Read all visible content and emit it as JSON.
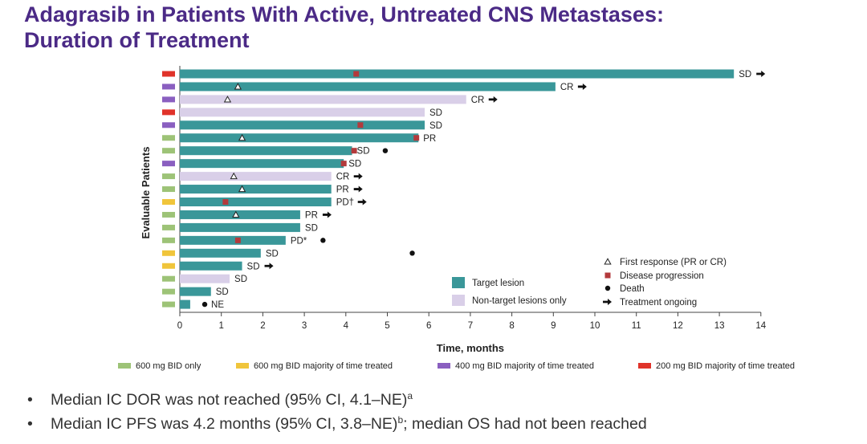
{
  "title_line1": "Adagrasib in Patients With Active, Untreated CNS Metastases:",
  "title_line2": "Duration of Treatment",
  "colors": {
    "title": "#4b2a86",
    "target_lesion": "#3a9799",
    "non_target": "#d9cfe8",
    "progression": "#b33a3c",
    "dose_600_only": "#9dc377",
    "dose_600_majority": "#f0c53b",
    "dose_400_majority": "#8a5fc0",
    "dose_200_majority": "#e0332a"
  },
  "chart_data": {
    "type": "bar",
    "orientation": "horizontal",
    "ylabel": "Evaluable Patients",
    "xlabel": "Time, months",
    "xlim": [
      0,
      14
    ],
    "xticks": [
      "0",
      "1",
      "2",
      "3",
      "4",
      "5",
      "6",
      "7",
      "8",
      "9",
      "10",
      "11",
      "12",
      "13",
      "14"
    ],
    "patients": [
      {
        "dose": "200",
        "duration": 13.35,
        "lesion": "target",
        "first_response": null,
        "progression": 4.25,
        "death": null,
        "label": "SD",
        "ongoing": true
      },
      {
        "dose": "400",
        "duration": 9.05,
        "lesion": "target",
        "first_response": 1.4,
        "progression": null,
        "death": null,
        "label": "CR",
        "ongoing": true
      },
      {
        "dose": "400",
        "duration": 6.9,
        "lesion": "non-target",
        "first_response": 1.15,
        "progression": null,
        "death": null,
        "label": "CR",
        "ongoing": true
      },
      {
        "dose": "200",
        "duration": 5.9,
        "lesion": "non-target",
        "first_response": null,
        "progression": null,
        "death": null,
        "label": "SD",
        "ongoing": false
      },
      {
        "dose": "400",
        "duration": 5.9,
        "lesion": "target",
        "first_response": null,
        "progression": 4.35,
        "death": null,
        "label": "SD",
        "ongoing": false
      },
      {
        "dose": "600o",
        "duration": 5.75,
        "lesion": "target",
        "first_response": 1.5,
        "progression": 5.7,
        "death": null,
        "label": "PR",
        "ongoing": false
      },
      {
        "dose": "600o",
        "duration": 4.15,
        "lesion": "target",
        "first_response": null,
        "progression": 4.2,
        "death": 4.95,
        "label": "SD",
        "ongoing": false
      },
      {
        "dose": "400",
        "duration": 3.95,
        "lesion": "target",
        "first_response": null,
        "progression": 3.95,
        "death": null,
        "label": "SD",
        "ongoing": false
      },
      {
        "dose": "600o",
        "duration": 3.65,
        "lesion": "non-target",
        "first_response": 1.3,
        "progression": null,
        "death": null,
        "label": "CR",
        "ongoing": true
      },
      {
        "dose": "600o",
        "duration": 3.65,
        "lesion": "target",
        "first_response": 1.5,
        "progression": null,
        "death": null,
        "label": "PR",
        "ongoing": true
      },
      {
        "dose": "600m",
        "duration": 3.65,
        "lesion": "target",
        "first_response": null,
        "progression": 1.1,
        "death": null,
        "label": "PD†",
        "ongoing": true
      },
      {
        "dose": "600o",
        "duration": 2.9,
        "lesion": "target",
        "first_response": 1.35,
        "progression": null,
        "death": null,
        "label": "PR",
        "ongoing": true
      },
      {
        "dose": "600o",
        "duration": 2.9,
        "lesion": "target",
        "first_response": null,
        "progression": null,
        "death": null,
        "label": "SD",
        "ongoing": false
      },
      {
        "dose": "600o",
        "duration": 2.55,
        "lesion": "target",
        "first_response": null,
        "progression": 1.4,
        "death": 3.45,
        "label": "PD*",
        "ongoing": false
      },
      {
        "dose": "600m",
        "duration": 1.95,
        "lesion": "target",
        "first_response": null,
        "progression": null,
        "death": 5.6,
        "label": "SD",
        "ongoing": false
      },
      {
        "dose": "600m",
        "duration": 1.5,
        "lesion": "target",
        "first_response": null,
        "progression": null,
        "death": null,
        "label": "SD",
        "ongoing": true
      },
      {
        "dose": "600o",
        "duration": 1.2,
        "lesion": "non-target",
        "first_response": null,
        "progression": null,
        "death": null,
        "label": "SD",
        "ongoing": false
      },
      {
        "dose": "600o",
        "duration": 0.75,
        "lesion": "target",
        "first_response": null,
        "progression": null,
        "death": null,
        "label": "SD",
        "ongoing": false
      },
      {
        "dose": "600o",
        "duration": 0.25,
        "lesion": "target",
        "first_response": null,
        "progression": null,
        "death": 0.6,
        "label": "NE",
        "ongoing": false
      }
    ],
    "legend_lesion": [
      "Target lesion",
      "Non-target lesions only"
    ],
    "legend_markers": [
      "First response (PR or CR)",
      "Disease progression",
      "Death",
      "Treatment ongoing"
    ],
    "legend_dose": {
      "600o": "600 mg BID only",
      "600m": "600 mg BID majority of time treated",
      "400": "400 mg BID majority of time treated",
      "200": "200 mg BID majority of time treated"
    }
  },
  "bullets": [
    {
      "text": "Median IC DOR was not reached (95% CI, 4.1–NE)",
      "sup": "a",
      "tail": ""
    },
    {
      "text": "Median IC PFS was 4.2 months (95% CI, 3.8–NE)",
      "sup": "b",
      "tail": "; median OS had not been reached"
    }
  ],
  "bullet_glyph": "•"
}
